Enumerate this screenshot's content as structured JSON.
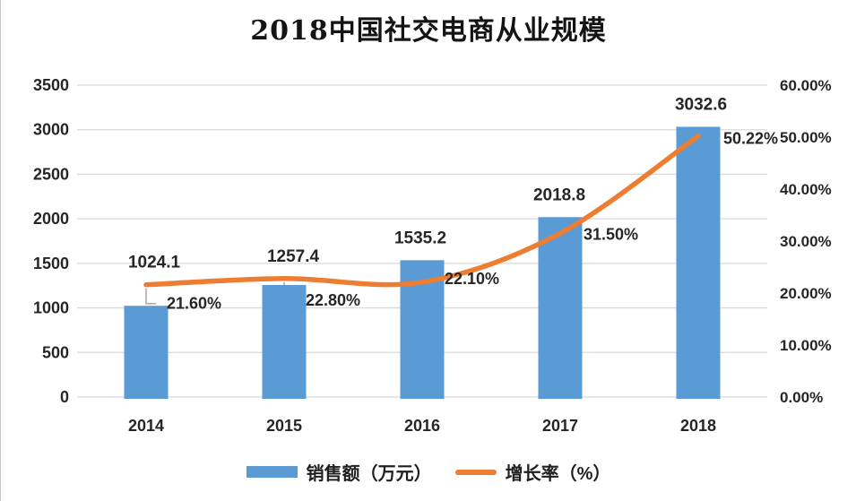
{
  "chart_data": {
    "type": "combo",
    "title": "2018中国社交电商从业规模",
    "categories": [
      "2014",
      "2015",
      "2016",
      "2017",
      "2018"
    ],
    "series": [
      {
        "name": "销售额（万元）",
        "type": "bar",
        "axis": "left",
        "color": "#5B9BD5",
        "values": [
          1024.1,
          1257.4,
          1535.2,
          2018.8,
          3032.6
        ],
        "labels": [
          "1024.1",
          "1257.4",
          "1535.2",
          "2018.8",
          "3032.6"
        ]
      },
      {
        "name": "增长率（%）",
        "type": "line",
        "axis": "right",
        "color": "#ED7D31",
        "values": [
          21.6,
          22.8,
          22.1,
          31.5,
          50.22
        ],
        "labels": [
          "21.60%",
          "22.80%",
          "22.10%",
          "31.50%",
          "50.22%"
        ]
      }
    ],
    "axes": {
      "left": {
        "min": 0,
        "max": 3500,
        "ticks": [
          "3500",
          "3000",
          "2500",
          "2000",
          "1500",
          "1000",
          "500",
          "0"
        ]
      },
      "right": {
        "min": 0,
        "max": 60,
        "ticks": [
          "60.00%",
          "50.00%",
          "40.00%",
          "30.00%",
          "20.00%",
          "10.00%",
          "0.00%"
        ]
      }
    },
    "grid": true,
    "grid_color": "#D9D9D9",
    "leader_line_color": "#a6a6a6",
    "legend_position": "bottom",
    "xlabel": "",
    "ylabel": ""
  }
}
